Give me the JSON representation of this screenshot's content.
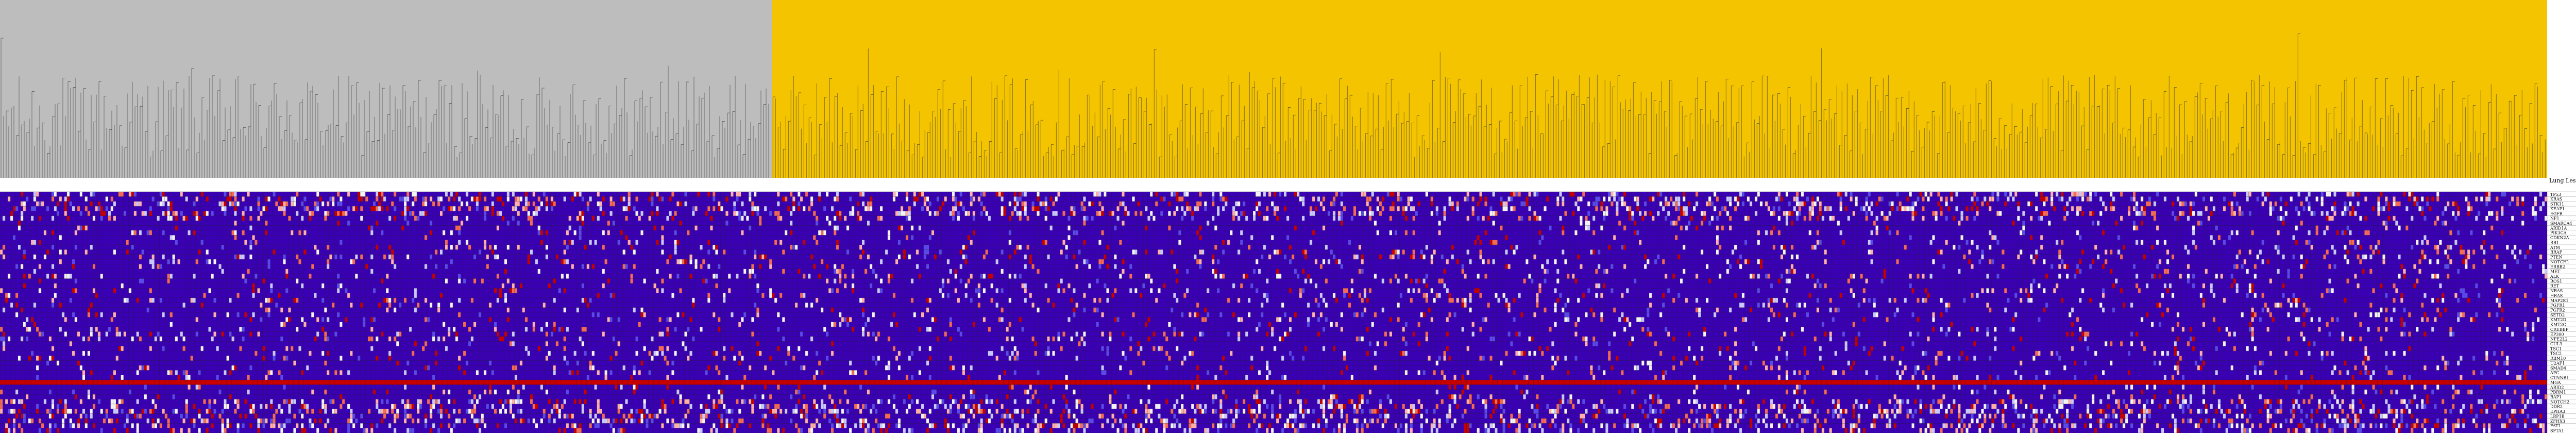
{
  "chart_data": {
    "type": "heatmap",
    "title": "",
    "xlabel": "",
    "ylabel": "",
    "grid": true,
    "legend": "none",
    "dendrogram": {
      "groups": [
        {
          "name": "grey-cluster",
          "color": "#bdbdbd",
          "columns": 300
        },
        {
          "name": "gold-cluster",
          "color": "#f5c400",
          "columns": 690
        }
      ]
    },
    "heatmap": {
      "n_rows": 50,
      "n_cols": 990,
      "row_label_header": "Lung Lesions",
      "row_labels": [
        "TP53",
        "KRAS",
        "STK11",
        "KEAP1",
        "EGFR",
        "NF1",
        "SMARCA4",
        "ARID1A",
        "PIK3CA",
        "CDKN2A",
        "RB1",
        "ATM",
        "BRAF",
        "PTEN",
        "NOTCH1",
        "ERBB2",
        "MET",
        "ALK",
        "ROS1",
        "RET",
        "NRAS",
        "HRAS",
        "MAP2K1",
        "FGFR1",
        "FGFR2",
        "SETD2",
        "KMT2D",
        "KMT2C",
        "CREBBP",
        "EP300",
        "NFE2L2",
        "CUL3",
        "TSC1",
        "TSC2",
        "RBM10",
        "U2AF1",
        "SMAD4",
        "APC",
        "CTNNB1",
        "MGA",
        "ARID2",
        "PBRM1",
        "BAP1",
        "NOTCH2",
        "DDR2",
        "EPHA3",
        "LRP1B",
        "ZFHX3",
        "FAT1",
        "SPTA1"
      ],
      "highlight_row": 39,
      "color_scale": {
        "stops": [
          "#3a00b4",
          "#5a4be8",
          "#c9c9ff",
          "#f4f4f4",
          "#ffb0a8",
          "#f36b55",
          "#c40000"
        ],
        "base": "#3a00b4",
        "highlight_row_color": "#c80000"
      }
    }
  }
}
